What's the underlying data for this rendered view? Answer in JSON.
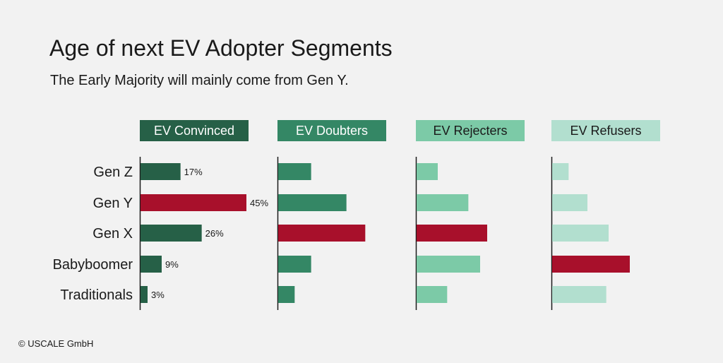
{
  "title": "Age of next EV Adopter Segments",
  "subtitle": "The Early Majority will mainly come from Gen Y.",
  "footer": "© USCALE GmbH",
  "colors": {
    "highlight": "#a8102b",
    "panel_bars": [
      "#266047",
      "#348765",
      "#7ccaa7",
      "#b2dfcf"
    ],
    "axis": "#1a1a1a"
  },
  "chart_data": {
    "type": "bar",
    "orientation": "horizontal",
    "categories": [
      "Gen Z",
      "Gen Y",
      "Gen X",
      "Babyboomer",
      "Traditionals"
    ],
    "xlim": [
      0,
      45
    ],
    "series": [
      {
        "name": "EV Convinced",
        "values": [
          17,
          45,
          26,
          9,
          3
        ],
        "labels": [
          "17%",
          "45%",
          "26%",
          "9%",
          "3%"
        ],
        "highlight_index": 1
      },
      {
        "name": "EV Doubters",
        "values": [
          14,
          29,
          37,
          14,
          7
        ],
        "labels": null,
        "highlight_index": 2
      },
      {
        "name": "EV Rejecters",
        "values": [
          9,
          22,
          30,
          27,
          13
        ],
        "labels": null,
        "highlight_index": 2
      },
      {
        "name": "EV Refusers",
        "values": [
          7,
          15,
          24,
          33,
          23
        ],
        "labels": null,
        "highlight_index": 3
      }
    ]
  }
}
